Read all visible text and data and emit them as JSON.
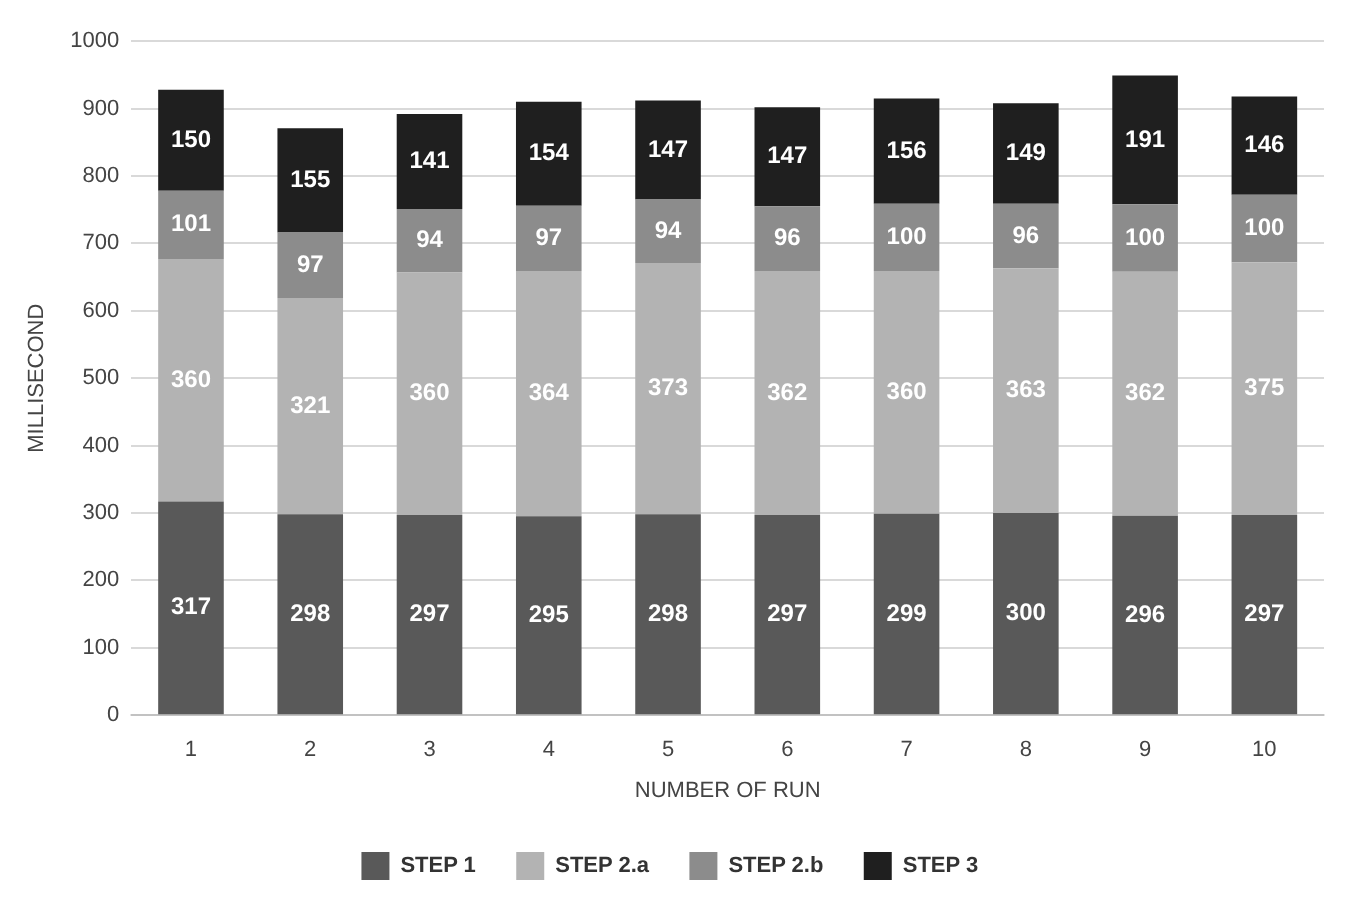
{
  "chart_data": {
    "type": "bar",
    "stacked": true,
    "xlabel": "NUMBER OF RUN",
    "ylabel": "MILLISECOND",
    "categories": [
      "1",
      "2",
      "3",
      "4",
      "5",
      "6",
      "7",
      "8",
      "9",
      "10"
    ],
    "series": [
      {
        "name": "STEP 1",
        "color": "#595959",
        "values": [
          317,
          298,
          297,
          295,
          298,
          297,
          299,
          300,
          296,
          297
        ]
      },
      {
        "name": "STEP 2.a",
        "color": "#b3b3b3",
        "values": [
          360,
          321,
          360,
          364,
          373,
          362,
          360,
          363,
          362,
          375
        ]
      },
      {
        "name": "STEP 2.b",
        "color": "#8c8c8c",
        "values": [
          101,
          97,
          94,
          97,
          94,
          96,
          100,
          96,
          100,
          100
        ]
      },
      {
        "name": "STEP 3",
        "color": "#1f1f1f",
        "values": [
          150,
          155,
          141,
          154,
          147,
          147,
          156,
          149,
          191,
          146
        ]
      }
    ],
    "ylim": [
      0,
      1000
    ],
    "yticks": [
      0,
      100,
      200,
      300,
      400,
      500,
      600,
      700,
      800,
      900,
      1000
    ],
    "grid": "y",
    "legend": "bottom",
    "data_labels": true
  }
}
